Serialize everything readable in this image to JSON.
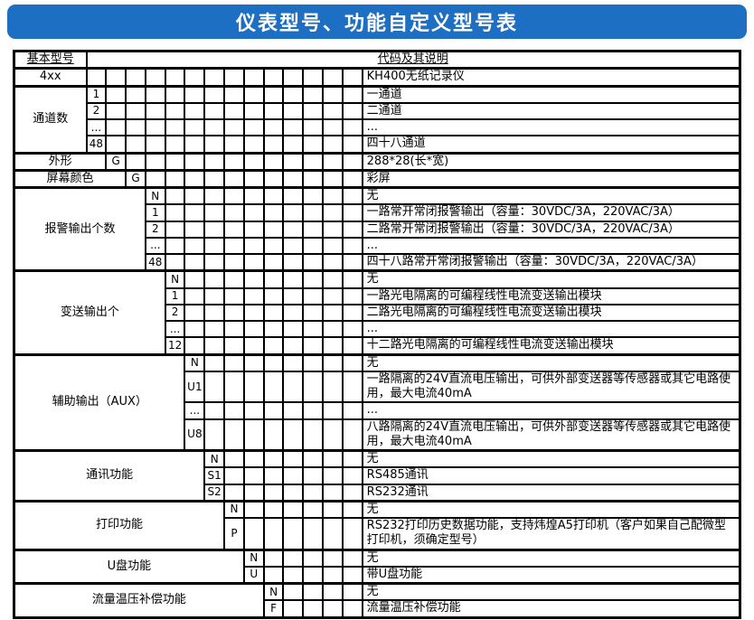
{
  "title": "仪表型号、功能自定义型号表",
  "colors": {
    "banner_blue": "#1d6fc4",
    "title_text": "#ffffff",
    "grid_border": "#000000"
  },
  "table": {
    "header": {
      "label": "基本型号",
      "description": "代码及其说明"
    },
    "sections": [
      {
        "name": "basic-model",
        "label": "4xx",
        "rows": [
          {
            "code": "",
            "desc": "KH400无纸记录仪"
          }
        ]
      },
      {
        "name": "channel-count",
        "label": "通道数",
        "rows": [
          {
            "code": "1",
            "desc": "一通道"
          },
          {
            "code": "2",
            "desc": "二通道"
          },
          {
            "code": "...",
            "desc": "..."
          },
          {
            "code": "48",
            "desc": "四十八通道"
          }
        ]
      },
      {
        "name": "shape",
        "label": "外形",
        "rows": [
          {
            "code": "G",
            "desc": "288*28(长*宽)"
          }
        ]
      },
      {
        "name": "screen-color",
        "label": "屏幕颜色",
        "rows": [
          {
            "code": "G",
            "desc": "彩屏"
          }
        ]
      },
      {
        "name": "alarm-output-count",
        "label": "报警输出个数",
        "rows": [
          {
            "code": "N",
            "desc": "无"
          },
          {
            "code": "1",
            "desc": "一路常开常闭报警输出（容量：30VDC/3A，220VAC/3A）"
          },
          {
            "code": "2",
            "desc": "二路常开常闭报警输出（容量：30VDC/3A，220VAC/3A）"
          },
          {
            "code": "...",
            "desc": "..."
          },
          {
            "code": "48",
            "desc": "四十八路常开常闭报警输出（容量：30VDC/3A，220VAC/3A）"
          }
        ]
      },
      {
        "name": "transmit-output-count",
        "label": "变送输出个",
        "rows": [
          {
            "code": "N",
            "desc": "无"
          },
          {
            "code": "1",
            "desc": "一路光电隔离的可编程线性电流变送输出模块"
          },
          {
            "code": "2",
            "desc": "二路光电隔离的可编程线性电流变送输出模块"
          },
          {
            "code": "...",
            "desc": "..."
          },
          {
            "code": "12",
            "desc": "十二路光电隔离的可编程线性电流变送输出模块"
          }
        ]
      },
      {
        "name": "aux-output",
        "label": "辅助输出（AUX）",
        "rows": [
          {
            "code": "N",
            "desc": "无"
          },
          {
            "code": "U1",
            "desc": "一路隔离的24V直流电压输出，可供外部变送器等传感器或其它电路使用，最大电流40mA"
          },
          {
            "code": "...",
            "desc": "..."
          },
          {
            "code": "U8",
            "desc": "八路隔离的24V直流电压输出，可供外部变送器等传感器或其它电路使用，最大电流40mA"
          }
        ]
      },
      {
        "name": "comm-function",
        "label": "通讯功能",
        "rows": [
          {
            "code": "N",
            "desc": "无"
          },
          {
            "code": "S1",
            "desc": "RS485通讯"
          },
          {
            "code": "S2",
            "desc": "RS232通讯"
          }
        ]
      },
      {
        "name": "print-function",
        "label": "打印功能",
        "rows": [
          {
            "code": "N",
            "desc": "无"
          },
          {
            "code": "P",
            "desc": "RS232打印历史数据功能，支持炜煌A5打印机（客户如果自己配微型打印机，须确定型号）"
          }
        ]
      },
      {
        "name": "usb-function",
        "label": "U盘功能",
        "rows": [
          {
            "code": "N",
            "desc": "无"
          },
          {
            "code": "U",
            "desc": "带U盘功能"
          }
        ]
      },
      {
        "name": "flow-compensation",
        "label": "流量温压补偿功能",
        "rows": [
          {
            "code": "N",
            "desc": "无"
          },
          {
            "code": "F",
            "desc": "流量温压补偿功能"
          }
        ]
      }
    ]
  }
}
